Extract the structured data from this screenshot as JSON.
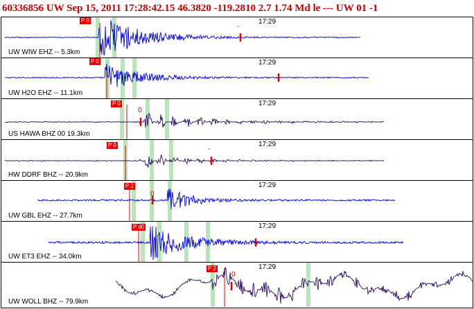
{
  "header": {
    "text": "60336856 UW Sep 15, 2011 17:28:42.15    46.3820 -119.2810   2.7 1.74 Md le --- UW 01   -1"
  },
  "colors": {
    "header": "#cc0000",
    "trace_blue": "#0000dd",
    "trace_purple": "#2a0a5e",
    "pick_red": "#ee0000",
    "window_green": "#b8e6b8"
  },
  "panels": [
    {
      "label": "UW WIW EHZ -- 5.3km",
      "time_label": "17:29",
      "pick_tag": "P 0",
      "pick_mark": "",
      "end_mark": "-",
      "trace_color": "blue"
    },
    {
      "label": "UW H2O EHZ -- 11.1km",
      "time_label": "17:29",
      "pick_tag": "P 0",
      "pick_mark": "",
      "end_mark": "",
      "trace_color": "blue"
    },
    {
      "label": "US HAWA BHZ 00 19.3km",
      "time_label": "17:29",
      "pick_tag": "P 0",
      "pick_mark": "0",
      "end_mark": "",
      "trace_color": "purple"
    },
    {
      "label": "HW DDRF BHZ -- 20.9km",
      "time_label": "17:29",
      "pick_tag": "P 0",
      "pick_mark": "",
      "end_mark": "-",
      "trace_color": "purple"
    },
    {
      "label": "UW GBL EHZ -- 27.7km",
      "time_label": "17:29",
      "pick_tag": "P 2",
      "pick_mark": "0",
      "end_mark": "",
      "trace_color": "blue"
    },
    {
      "label": "UW ET3 EHZ -- 34.0km",
      "time_label": "17:29",
      "pick_tag": "P d0",
      "pick_mark": "",
      "end_mark": "",
      "trace_color": "blue"
    },
    {
      "label": "UW WOLL BHZ -- 79.9km",
      "time_label": "17:29",
      "pick_tag": "P 2",
      "pick_mark": "0",
      "end_mark": "",
      "trace_color": "purple"
    }
  ]
}
